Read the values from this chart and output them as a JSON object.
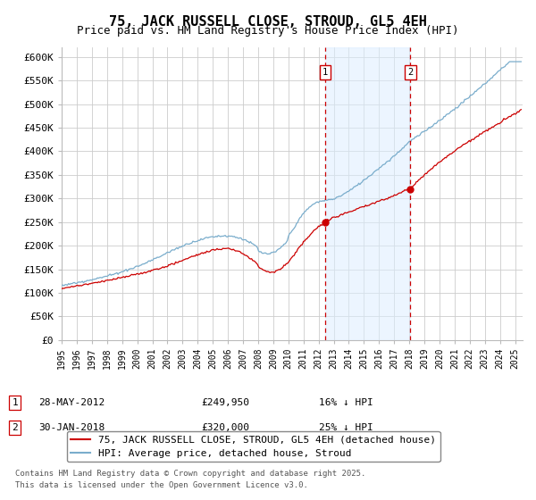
{
  "title": "75, JACK RUSSELL CLOSE, STROUD, GL5 4EH",
  "subtitle": "Price paid vs. HM Land Registry's House Price Index (HPI)",
  "ylim": [
    0,
    620000
  ],
  "yticks": [
    0,
    50000,
    100000,
    150000,
    200000,
    250000,
    300000,
    350000,
    400000,
    450000,
    500000,
    550000,
    600000
  ],
  "ytick_labels": [
    "£0",
    "£50K",
    "£100K",
    "£150K",
    "£200K",
    "£250K",
    "£300K",
    "£350K",
    "£400K",
    "£450K",
    "£500K",
    "£550K",
    "£600K"
  ],
  "xlim_start": 1995.0,
  "xlim_end": 2025.5,
  "line1_color": "#cc0000",
  "line2_color": "#7aadcc",
  "line1_label": "75, JACK RUSSELL CLOSE, STROUD, GL5 4EH (detached house)",
  "line2_label": "HPI: Average price, detached house, Stroud",
  "vline1_x": 2012.42,
  "vline2_x": 2018.08,
  "vline_color": "#cc0000",
  "shade_color": "#ddeeff",
  "annotation1": "28-MAY-2012",
  "annotation1_price": "£249,950",
  "annotation1_hpi": "16% ↓ HPI",
  "annotation2": "30-JAN-2018",
  "annotation2_price": "£320,000",
  "annotation2_hpi": "25% ↓ HPI",
  "sale1_price": 249950,
  "sale2_price": 320000,
  "sale1_year": 2012.42,
  "sale2_year": 2018.08,
  "footer1": "Contains HM Land Registry data © Crown copyright and database right 2025.",
  "footer2": "This data is licensed under the Open Government Licence v3.0.",
  "background_color": "#ffffff",
  "grid_color": "#cccccc",
  "title_fontsize": 11,
  "subtitle_fontsize": 9,
  "tick_fontsize": 8,
  "legend_fontsize": 8,
  "annotation_fontsize": 8,
  "footer_fontsize": 6.5
}
